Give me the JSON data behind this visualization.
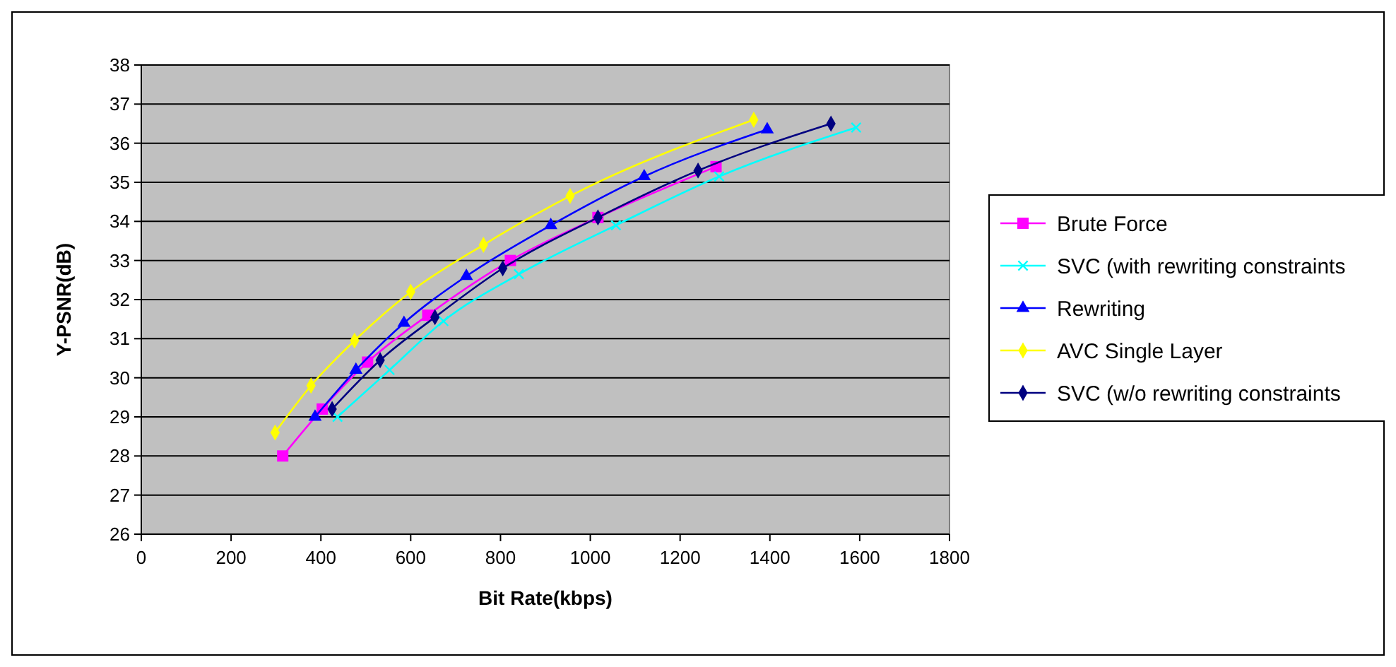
{
  "chart_data": {
    "type": "line",
    "xlabel": "Bit Rate(kbps)",
    "ylabel": "Y-PSNR(dB)",
    "xlim": [
      0,
      1800
    ],
    "xticks": [
      0,
      200,
      400,
      600,
      800,
      1000,
      1200,
      1400,
      1600,
      1800
    ],
    "ylim": [
      26,
      38
    ],
    "yticks": [
      26,
      27,
      28,
      29,
      30,
      31,
      32,
      33,
      34,
      35,
      36,
      37,
      38
    ],
    "grid": "y",
    "legend": "right",
    "series": [
      {
        "name": "Brute Force",
        "color": "#ff00ff",
        "marker": "square",
        "x": [
          315,
          403,
          504,
          638,
          822,
          1017,
          1280
        ],
        "values": [
          28.0,
          29.2,
          30.4,
          31.6,
          33.0,
          34.1,
          35.4
        ]
      },
      {
        "name": "SVC (with rewriting constraints",
        "color": "#00ffff",
        "marker": "cross",
        "x": [
          437,
          553,
          673,
          841,
          1057,
          1287,
          1592
        ],
        "values": [
          29.0,
          30.2,
          31.45,
          32.65,
          33.9,
          35.15,
          36.4
        ]
      },
      {
        "name": "Rewriting",
        "color": "#0000ff",
        "marker": "triangle",
        "x": [
          387,
          478,
          585,
          724,
          912,
          1120,
          1394
        ],
        "values": [
          29.0,
          30.2,
          31.4,
          32.6,
          33.9,
          35.15,
          36.35
        ]
      },
      {
        "name": "AVC Single Layer",
        "color": "#ffff00",
        "marker": "diamond",
        "x": [
          298,
          378,
          475,
          600,
          762,
          955,
          1364
        ],
        "values": [
          28.6,
          29.8,
          30.95,
          32.2,
          33.4,
          34.65,
          36.6
        ]
      },
      {
        "name": "SVC (w/o rewriting constraints",
        "color": "#000080",
        "marker": "diamond",
        "x": [
          425,
          532,
          654,
          805,
          1017,
          1240,
          1536
        ],
        "values": [
          29.2,
          30.45,
          31.55,
          32.8,
          34.1,
          35.3,
          36.5
        ]
      }
    ]
  }
}
